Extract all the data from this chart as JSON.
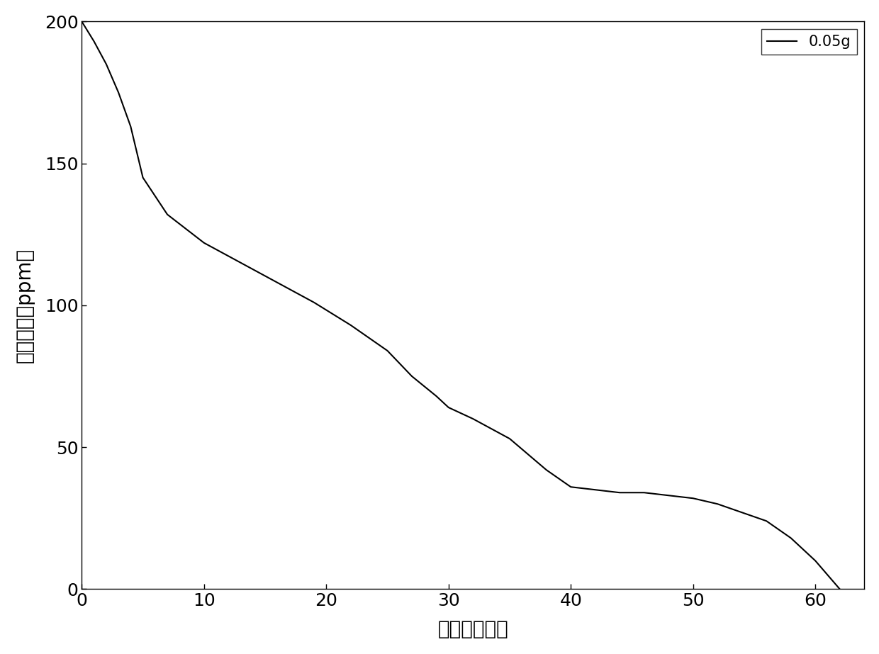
{
  "x": [
    0,
    1,
    2,
    3,
    4,
    5,
    7,
    10,
    13,
    16,
    19,
    22,
    25,
    27,
    29,
    30,
    32,
    35,
    38,
    40,
    42,
    44,
    46,
    48,
    50,
    52,
    54,
    56,
    58,
    60,
    62
  ],
  "y": [
    200,
    193,
    185,
    175,
    163,
    145,
    132,
    122,
    115,
    108,
    101,
    93,
    84,
    75,
    68,
    64,
    60,
    53,
    42,
    36,
    35,
    34,
    34,
    33,
    32,
    30,
    27,
    24,
    18,
    10,
    0
  ],
  "line_color": "#000000",
  "line_width": 1.5,
  "xlim": [
    0,
    64
  ],
  "ylim": [
    0,
    200
  ],
  "xticks": [
    0,
    10,
    20,
    30,
    40,
    50,
    60
  ],
  "yticks": [
    0,
    50,
    100,
    150,
    200
  ],
  "xlabel": "时间（分钟）",
  "ylabel": "甲醇浓度（ppm）",
  "legend_label": "0.05g",
  "background_color": "#ffffff",
  "xlabel_fontsize": 20,
  "ylabel_fontsize": 20,
  "tick_fontsize": 18,
  "legend_fontsize": 15
}
